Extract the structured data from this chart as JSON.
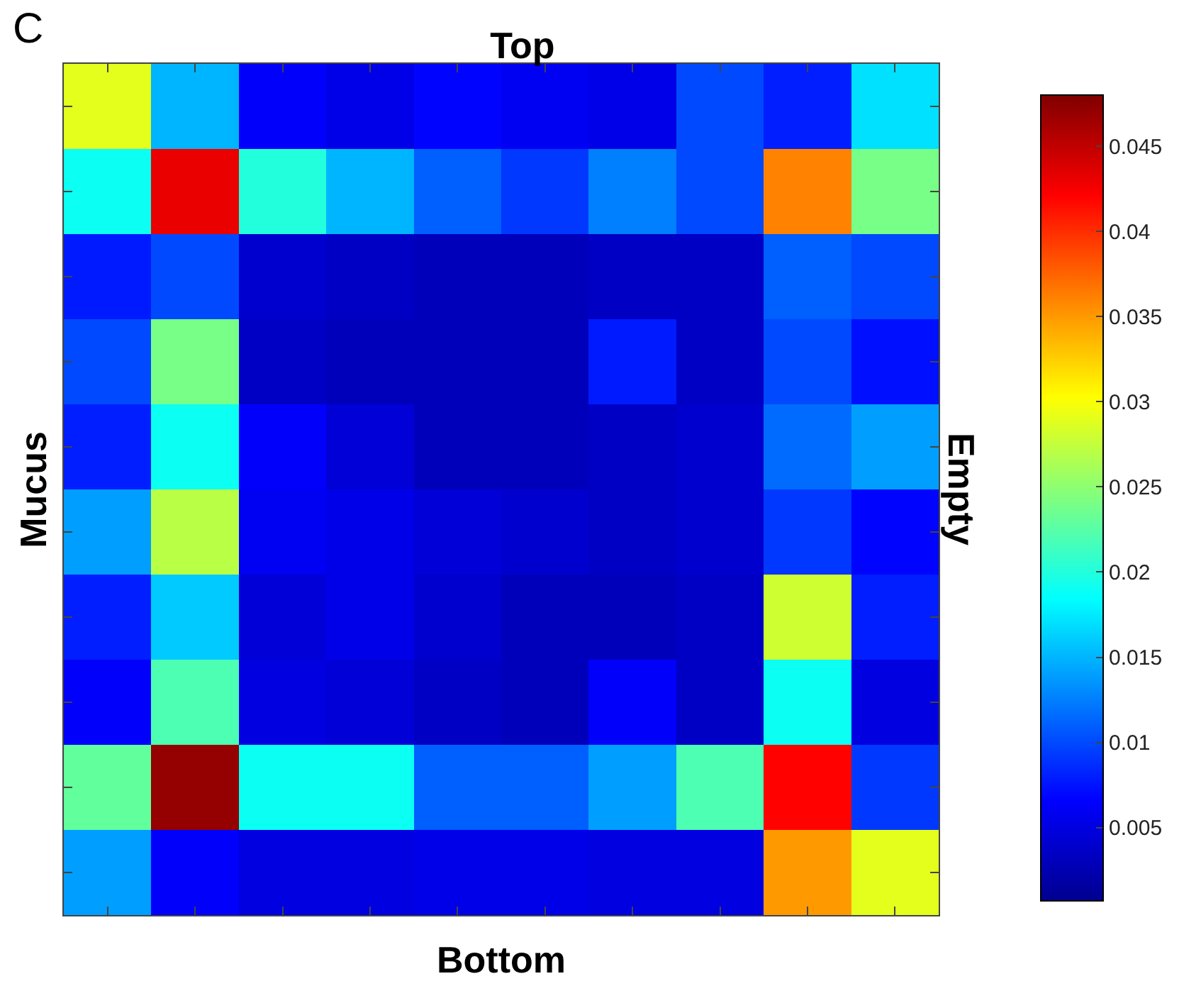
{
  "chart_data": {
    "type": "heatmap",
    "title": "Top",
    "xlabel": "Bottom",
    "ylabel": "Mucus",
    "y2label": "Empty",
    "annotations": [
      "C"
    ],
    "categories": [
      null,
      null,
      null,
      null,
      null,
      null,
      null,
      null,
      null,
      null
    ],
    "y_categories": [
      null,
      null,
      null,
      null,
      null,
      null,
      null,
      null,
      null,
      null
    ],
    "cells": [
      [
        0.029,
        0.015,
        0.0064,
        0.0054,
        0.0068,
        0.006,
        0.0054,
        0.01,
        0.008,
        0.017
      ],
      [
        0.019,
        0.043,
        0.02,
        0.015,
        0.011,
        0.0092,
        0.0125,
        0.01,
        0.036,
        0.024
      ],
      [
        0.0078,
        0.01,
        0.004,
        0.0035,
        0.003,
        0.003,
        0.0035,
        0.0035,
        0.011,
        0.01
      ],
      [
        0.01,
        0.024,
        0.0035,
        0.003,
        0.003,
        0.003,
        0.0078,
        0.0035,
        0.01,
        0.0073
      ],
      [
        0.008,
        0.019,
        0.0064,
        0.0045,
        0.003,
        0.003,
        0.0035,
        0.004,
        0.0116,
        0.014
      ],
      [
        0.014,
        0.027,
        0.006,
        0.0054,
        0.0045,
        0.004,
        0.0035,
        0.004,
        0.0092,
        0.0068
      ],
      [
        0.008,
        0.016,
        0.0045,
        0.0054,
        0.004,
        0.003,
        0.003,
        0.0035,
        0.028,
        0.008
      ],
      [
        0.0064,
        0.022,
        0.005,
        0.0045,
        0.0035,
        0.003,
        0.0064,
        0.0035,
        0.019,
        0.005
      ],
      [
        0.023,
        0.047,
        0.019,
        0.019,
        0.011,
        0.011,
        0.014,
        0.022,
        0.042,
        0.0092
      ],
      [
        0.014,
        0.0064,
        0.005,
        0.005,
        0.0054,
        0.0054,
        0.005,
        0.005,
        0.035,
        0.029
      ]
    ],
    "clim": [
      0.0007,
      0.048
    ],
    "cticks": [
      0.005,
      0.01,
      0.015,
      0.02,
      0.025,
      0.03,
      0.035,
      0.04,
      0.045
    ],
    "tick_labels": false
  }
}
